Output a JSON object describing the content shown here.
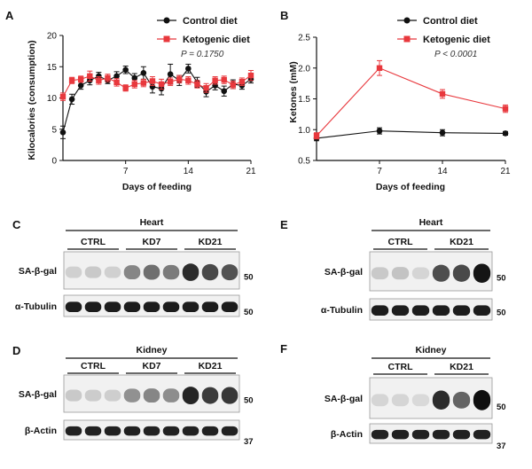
{
  "panels": {
    "A": "A",
    "B": "B",
    "C": "C",
    "D": "D",
    "E": "E",
    "F": "F"
  },
  "colors": {
    "control": "#111111",
    "ketogenic": "#e8383d"
  },
  "chart_data": [
    {
      "type": "line",
      "panel": "A",
      "xlabel": "Days of feeding",
      "ylabel": "Kilocalories (consumption)",
      "xlim": [
        0,
        21
      ],
      "ylim": [
        0,
        20
      ],
      "xticks": [
        7,
        14,
        21
      ],
      "yticks": [
        0,
        5,
        10,
        15,
        20
      ],
      "annotation": "P = 0.1750",
      "legend": "top-right",
      "series": [
        {
          "name": "Control diet",
          "color": "#111111",
          "marker": "circle",
          "x": [
            0,
            1,
            2,
            3,
            4,
            5,
            6,
            7,
            8,
            9,
            10,
            11,
            12,
            13,
            14,
            15,
            16,
            17,
            18,
            19,
            20,
            21
          ],
          "y": [
            4.5,
            9.8,
            12.0,
            12.8,
            13.5,
            12.8,
            13.5,
            14.5,
            13.2,
            14.0,
            11.8,
            11.5,
            13.8,
            12.8,
            14.7,
            12.5,
            11.0,
            12.0,
            11.1,
            12.2,
            12.0,
            13.0
          ],
          "err": [
            1.0,
            0.8,
            0.6,
            0.7,
            0.6,
            0.5,
            0.7,
            0.6,
            0.7,
            1.0,
            1.0,
            1.0,
            1.6,
            0.8,
            0.7,
            0.8,
            0.8,
            0.7,
            0.8,
            0.7,
            0.6,
            0.6
          ]
        },
        {
          "name": "Ketogenic diet",
          "color": "#e8383d",
          "marker": "square",
          "x": [
            0,
            1,
            2,
            3,
            4,
            5,
            6,
            7,
            8,
            9,
            10,
            11,
            12,
            13,
            14,
            15,
            16,
            17,
            18,
            19,
            20,
            21
          ],
          "y": [
            10.2,
            12.8,
            13.0,
            13.5,
            12.8,
            13.2,
            12.5,
            11.6,
            12.2,
            12.4,
            12.7,
            12.2,
            12.6,
            13.0,
            12.8,
            12.2,
            11.6,
            12.8,
            12.9,
            12.1,
            12.6,
            13.6
          ],
          "err": [
            0.6,
            0.5,
            0.5,
            0.8,
            0.6,
            0.6,
            0.6,
            0.5,
            0.6,
            0.6,
            0.7,
            0.8,
            0.6,
            0.6,
            0.6,
            0.6,
            0.7,
            0.6,
            0.6,
            0.6,
            0.6,
            0.8
          ]
        }
      ]
    },
    {
      "type": "line",
      "panel": "B",
      "xlabel": "Days of feeding",
      "ylabel": "Ketones (mM)",
      "xlim": [
        0,
        21
      ],
      "ylim": [
        0.5,
        2.5
      ],
      "xticks": [
        7,
        14,
        21
      ],
      "yticks": [
        0.5,
        1.0,
        1.5,
        2.0,
        2.5
      ],
      "ytick_labels": [
        "0.5",
        "1.0",
        "1.5",
        "2.0",
        "2.5"
      ],
      "annotation": "P < 0.0001",
      "legend": "top-right",
      "series": [
        {
          "name": "Control diet",
          "color": "#111111",
          "marker": "circle",
          "x": [
            0,
            7,
            14,
            21
          ],
          "y": [
            0.86,
            0.98,
            0.95,
            0.94
          ],
          "err": [
            0.04,
            0.05,
            0.05,
            0.03
          ]
        },
        {
          "name": "Ketogenic diet",
          "color": "#e8383d",
          "marker": "square",
          "x": [
            0,
            7,
            14,
            21
          ],
          "y": [
            0.9,
            2.0,
            1.58,
            1.34
          ],
          "err": [
            0.05,
            0.12,
            0.07,
            0.06
          ]
        }
      ]
    }
  ],
  "blots": {
    "C": {
      "title": "Heart",
      "groups": [
        "CTRL",
        "KD7",
        "KD21"
      ],
      "rows": [
        {
          "label": "SA-β-gal",
          "mw": "50",
          "intensities": [
            0.12,
            0.15,
            0.12,
            0.45,
            0.55,
            0.5,
            0.85,
            0.72,
            0.68
          ]
        },
        {
          "label": "α-Tubulin",
          "mw": "50",
          "intensities": [
            0.92,
            0.92,
            0.92,
            0.92,
            0.92,
            0.92,
            0.92,
            0.92,
            0.92
          ]
        }
      ]
    },
    "D": {
      "title": "Kidney",
      "groups": [
        "CTRL",
        "KD7",
        "KD21"
      ],
      "rows": [
        {
          "label": "SA-β-gal",
          "mw": "50",
          "intensities": [
            0.15,
            0.14,
            0.13,
            0.4,
            0.45,
            0.42,
            0.88,
            0.78,
            0.8
          ]
        },
        {
          "label": "β-Actin",
          "mw": "37",
          "intensities": [
            0.9,
            0.9,
            0.9,
            0.9,
            0.9,
            0.9,
            0.9,
            0.9,
            0.9
          ]
        }
      ]
    },
    "E": {
      "title": "Heart",
      "groups": [
        "CTRL",
        "KD21"
      ],
      "rows": [
        {
          "label": "SA-β-gal",
          "mw": "50",
          "intensities": [
            0.15,
            0.18,
            0.1,
            0.7,
            0.72,
            0.95
          ]
        },
        {
          "label": "α-Tubulin",
          "mw": "50",
          "intensities": [
            0.92,
            0.92,
            0.92,
            0.92,
            0.92,
            0.92
          ]
        }
      ]
    },
    "F": {
      "title": "Kidney",
      "groups": [
        "CTRL",
        "KD21"
      ],
      "rows": [
        {
          "label": "SA-β-gal",
          "mw": "50",
          "intensities": [
            0.1,
            0.1,
            0.08,
            0.85,
            0.6,
            0.98
          ]
        },
        {
          "label": "β-Actin",
          "mw": "37",
          "intensities": [
            0.9,
            0.9,
            0.9,
            0.9,
            0.9,
            0.9
          ]
        }
      ]
    }
  }
}
